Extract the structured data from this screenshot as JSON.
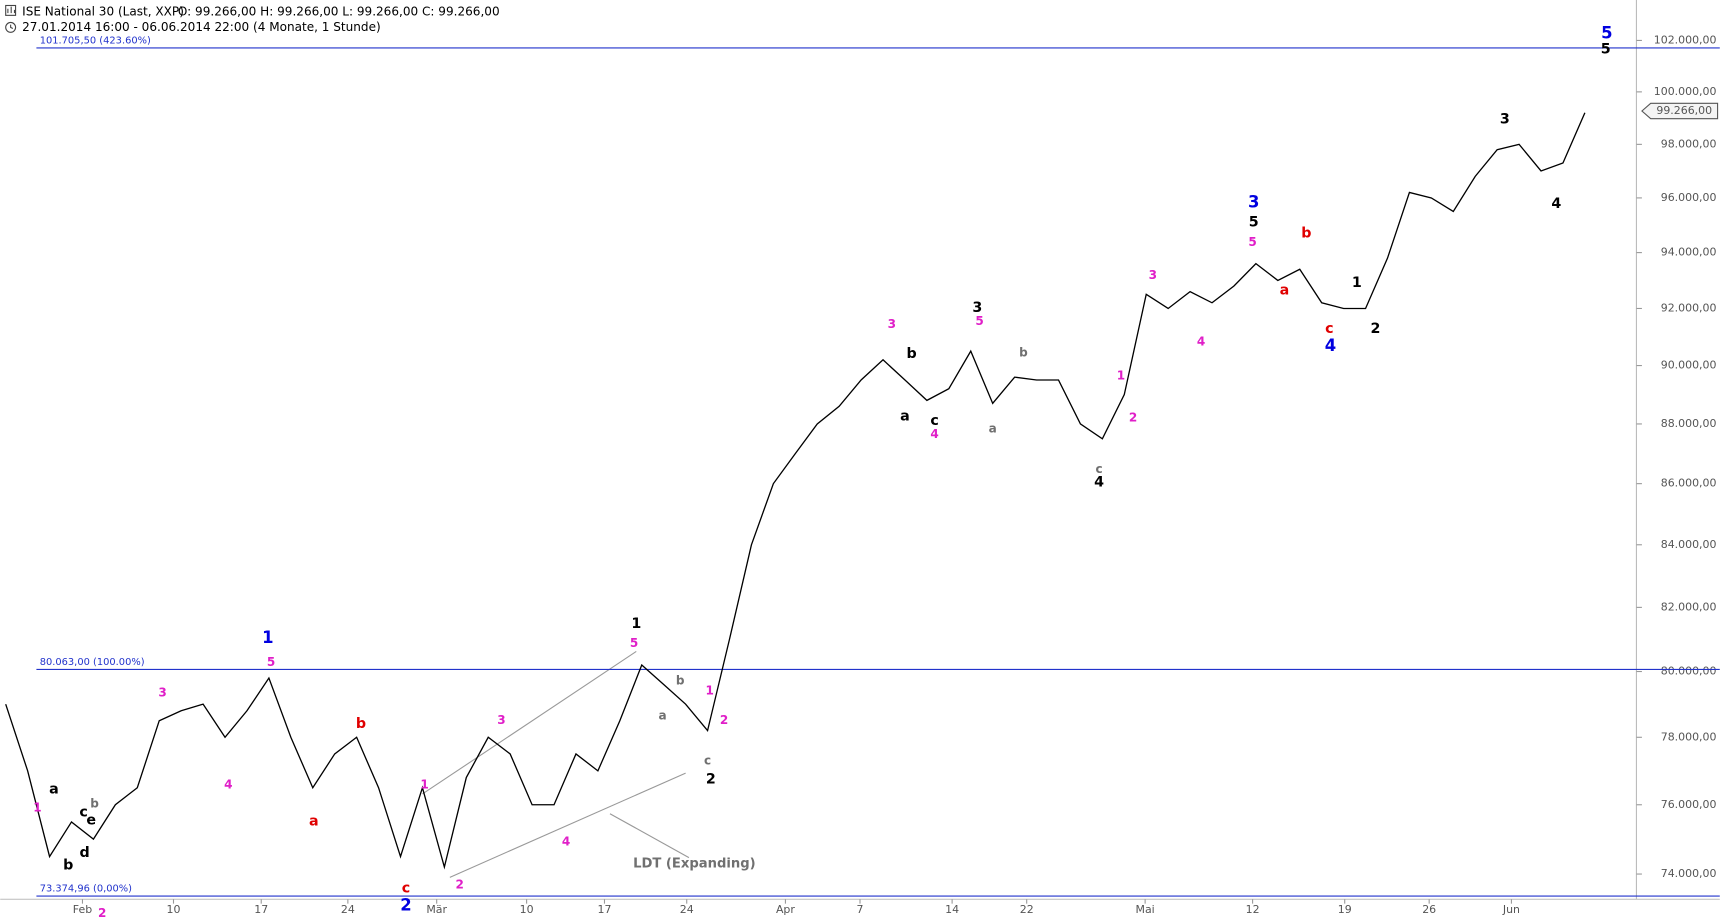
{
  "header": {
    "title": "ISE National 30 (Last, XXP)",
    "ohlc": "O: 99.266,00   H: 99.266,00   L: 99.266,00   C: 99.266,00",
    "range": "27.01.2014 16:00 - 06.06.2014 22:00 (4 Monate, 1 Stunde)"
  },
  "chart_data": {
    "type": "line",
    "color": "#000000",
    "log_scale": true,
    "values": [
      79000,
      77000,
      74500,
      75500,
      75000,
      76000,
      76500,
      78500,
      78800,
      79000,
      78000,
      78800,
      79800,
      78000,
      76500,
      77500,
      78000,
      76500,
      74500,
      76500,
      74200,
      76800,
      78000,
      77500,
      76000,
      76000,
      77500,
      77000,
      78500,
      80200,
      79600,
      79000,
      78200,
      81000,
      84000,
      86000,
      87000,
      88000,
      88600,
      89500,
      90200,
      89500,
      88800,
      89200,
      90500,
      88700,
      89600,
      89500,
      89500,
      88000,
      87500,
      89000,
      92500,
      92000,
      92600,
      92200,
      92800,
      93600,
      93000,
      93400,
      92200,
      92000,
      92000,
      93800,
      96200,
      96000,
      95500,
      96800,
      97800,
      98000,
      97000,
      97300,
      99200
    ],
    "xlim": [
      -0.25,
      78.15
    ],
    "xticks": [
      {
        "value": 3.5,
        "label": "Feb"
      },
      {
        "value": 7.65,
        "label": "10"
      },
      {
        "value": 11.65,
        "label": "17"
      },
      {
        "value": 15.6,
        "label": "24"
      },
      {
        "value": 19.65,
        "label": "Mär"
      },
      {
        "value": 23.75,
        "label": "10"
      },
      {
        "value": 27.3,
        "label": "17"
      },
      {
        "value": 31.05,
        "label": "24"
      },
      {
        "value": 35.55,
        "label": "Apr"
      },
      {
        "value": 38.95,
        "label": "7"
      },
      {
        "value": 43.15,
        "label": "14"
      },
      {
        "value": 46.55,
        "label": "22"
      },
      {
        "value": 51.95,
        "label": "Mai"
      },
      {
        "value": 56.85,
        "label": "12"
      },
      {
        "value": 61.05,
        "label": "19"
      },
      {
        "value": 64.9,
        "label": "26"
      },
      {
        "value": 68.65,
        "label": "Jun"
      }
    ],
    "ylim": [
      73285,
      103600
    ],
    "yticks": [
      {
        "value": 74000,
        "label": "74.000,00"
      },
      {
        "value": 76000,
        "label": "76.000,00"
      },
      {
        "value": 78000,
        "label": "78.000,00"
      },
      {
        "value": 80000,
        "label": "80.000,00"
      },
      {
        "value": 82000,
        "label": "82.000,00"
      },
      {
        "value": 84000,
        "label": "84.000,00"
      },
      {
        "value": 86000,
        "label": "86.000,00"
      },
      {
        "value": 88000,
        "label": "88.000,00"
      },
      {
        "value": 90000,
        "label": "90.000,00"
      },
      {
        "value": 92000,
        "label": "92.000,00"
      },
      {
        "value": 94000,
        "label": "94.000,00"
      },
      {
        "value": 96000,
        "label": "96.000,00"
      },
      {
        "value": 98000,
        "label": "98.000,00"
      },
      {
        "value": 100000,
        "label": "100.000,00"
      },
      {
        "value": 102000,
        "label": "102.000,00"
      }
    ],
    "reference_lines": [
      {
        "value": 101705.5,
        "label": "101.705,50 (423.60%)",
        "color": "#2233cc"
      },
      {
        "value": 80063,
        "label": "80.063,00 (100.00%)",
        "color": "#2233cc"
      },
      {
        "value": 73374.96,
        "label": "73.374,96 (0,00%)",
        "color": "#2233cc"
      }
    ],
    "last_price": {
      "value": 99266,
      "label": "99.266,00"
    },
    "annotations": [
      {
        "text": "1",
        "color": "#0000e0"
      },
      {
        "text": "5",
        "color": "#e01fc8"
      },
      {
        "text": "3",
        "color": "#e01fc8"
      },
      {
        "text": "4",
        "color": "#e01fc8"
      },
      {
        "text": "1",
        "color": "#e01fc8"
      },
      {
        "text": "a",
        "color": "#000000"
      },
      {
        "text": "c",
        "color": "#000000"
      },
      {
        "text": "e",
        "color": "#000000"
      },
      {
        "text": "b",
        "color": "#707070"
      },
      {
        "text": "b",
        "color": "#000000"
      },
      {
        "text": "d",
        "color": "#000000"
      },
      {
        "text": "2",
        "color": "#e01fc8"
      },
      {
        "text": "b",
        "color": "#e00000"
      },
      {
        "text": "a",
        "color": "#e00000"
      },
      {
        "text": "c",
        "color": "#e00000"
      },
      {
        "text": "2",
        "color": "#0000e0"
      },
      {
        "text": "1",
        "color": "#e01fc8"
      },
      {
        "text": "3",
        "color": "#e01fc8"
      },
      {
        "text": "4",
        "color": "#e01fc8"
      },
      {
        "text": "2",
        "color": "#e01fc8"
      },
      {
        "text": "1",
        "color": "#000000"
      },
      {
        "text": "5",
        "color": "#e01fc8"
      },
      {
        "text": "b",
        "color": "#707070"
      },
      {
        "text": "a",
        "color": "#707070"
      },
      {
        "text": "1",
        "color": "#e01fc8"
      },
      {
        "text": "2",
        "color": "#e01fc8"
      },
      {
        "text": "c",
        "color": "#707070"
      },
      {
        "text": "2",
        "color": "#000000"
      },
      {
        "text": "LDT (Expanding)",
        "color": "#707070"
      },
      {
        "text": "3",
        "color": "#e01fc8"
      },
      {
        "text": "b",
        "color": "#000000"
      },
      {
        "text": "a",
        "color": "#000000"
      },
      {
        "text": "c",
        "color": "#000000"
      },
      {
        "text": "4",
        "color": "#e01fc8"
      },
      {
        "text": "3",
        "color": "#000000"
      },
      {
        "text": "5",
        "color": "#e01fc8"
      },
      {
        "text": "b",
        "color": "#707070"
      },
      {
        "text": "a",
        "color": "#707070"
      },
      {
        "text": "c",
        "color": "#707070"
      },
      {
        "text": "4",
        "color": "#000000"
      },
      {
        "text": "1",
        "color": "#e01fc8"
      },
      {
        "text": "2",
        "color": "#e01fc8"
      },
      {
        "text": "3",
        "color": "#e01fc8"
      },
      {
        "text": "4",
        "color": "#e01fc8"
      },
      {
        "text": "3",
        "color": "#0000e0"
      },
      {
        "text": "5",
        "color": "#000000"
      },
      {
        "text": "5",
        "color": "#e01fc8"
      },
      {
        "text": "b",
        "color": "#e00000"
      },
      {
        "text": "a",
        "color": "#e00000"
      },
      {
        "text": "c",
        "color": "#e00000"
      },
      {
        "text": "4",
        "color": "#0000e0"
      },
      {
        "text": "1",
        "color": "#000000"
      },
      {
        "text": "2",
        "color": "#000000"
      },
      {
        "text": "3",
        "color": "#000000"
      },
      {
        "text": "4",
        "color": "#000000"
      },
      {
        "text": "5",
        "color": "#0000e0"
      },
      {
        "text": "5",
        "color": "#000000"
      }
    ]
  }
}
